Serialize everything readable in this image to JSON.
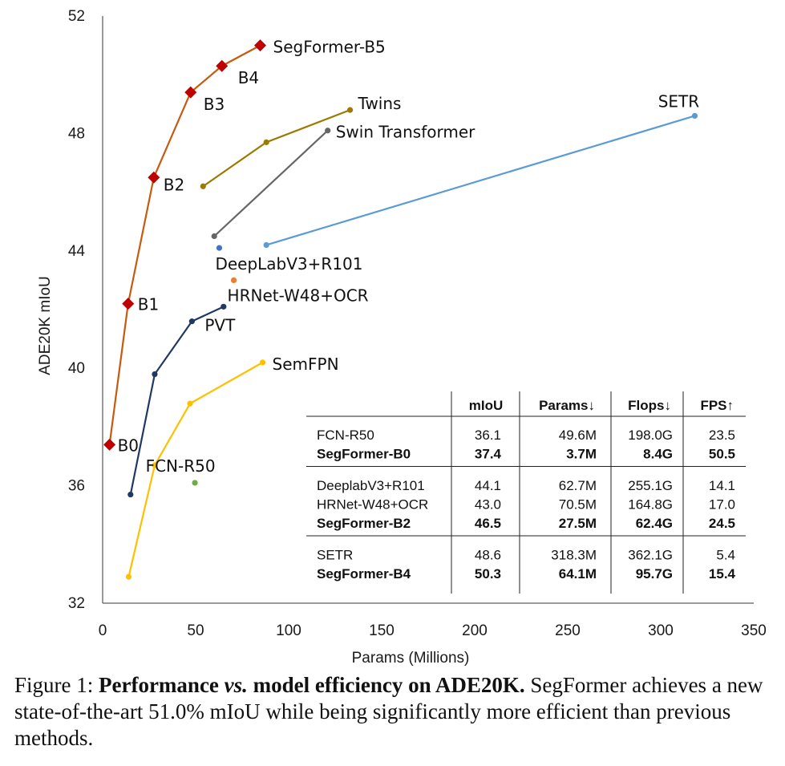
{
  "chart_data": {
    "type": "line",
    "xlabel": "Params (Millions)",
    "ylabel": "ADE20K mIoU",
    "xlim": [
      0,
      350
    ],
    "ylim": [
      32,
      52
    ],
    "xticks": [
      0,
      50,
      100,
      150,
      200,
      250,
      300,
      350
    ],
    "yticks": [
      32,
      36,
      40,
      44,
      48,
      52
    ],
    "grid": false,
    "legend": "none",
    "series": [
      {
        "name": "SegFormer",
        "color": "#C55A11",
        "marker": "diamond",
        "marker_color": "#C00000",
        "x": [
          3.7,
          13.7,
          27.5,
          47.3,
          64.1,
          84.7
        ],
        "y": [
          37.4,
          42.2,
          46.5,
          49.4,
          50.3,
          51.0
        ],
        "point_labels": [
          "B0",
          "B1",
          "B2",
          "B3",
          "B4",
          "SegFormer-B5"
        ]
      },
      {
        "name": "Twins",
        "color": "#9C7A00",
        "marker": "circle",
        "x": [
          54,
          88,
          133
        ],
        "y": [
          46.2,
          47.7,
          48.8
        ],
        "point_labels": [
          "",
          "",
          "Twins"
        ]
      },
      {
        "name": "Swin Transformer",
        "color": "#666666",
        "marker": "circle",
        "x": [
          60,
          121
        ],
        "y": [
          44.5,
          48.1
        ],
        "point_labels": [
          "",
          "Swin Transformer"
        ]
      },
      {
        "name": "SETR",
        "color": "#5B9BD5",
        "marker": "circle",
        "x": [
          88,
          318.3
        ],
        "y": [
          44.2,
          48.6
        ],
        "point_labels": [
          "",
          "SETR"
        ]
      },
      {
        "name": "DeepLabV3+R101",
        "color": "#4472C4",
        "marker": "circle",
        "x": [
          62.7
        ],
        "y": [
          44.1
        ],
        "point_labels": [
          "DeepLabV3+R101"
        ]
      },
      {
        "name": "HRNet-W48+OCR",
        "color": "#ED7D31",
        "marker": "circle",
        "x": [
          70.5
        ],
        "y": [
          43.0
        ],
        "point_labels": [
          "HRNet-W48+OCR"
        ]
      },
      {
        "name": "PVT",
        "color": "#203864",
        "marker": "circle",
        "x": [
          15,
          28,
          48,
          65
        ],
        "y": [
          35.7,
          39.8,
          41.6,
          42.1
        ],
        "point_labels": [
          "",
          "",
          "PVT",
          ""
        ]
      },
      {
        "name": "SemFPN",
        "color": "#FFC000",
        "marker": "circle",
        "x": [
          14,
          28,
          47,
          86
        ],
        "y": [
          32.9,
          36.7,
          38.8,
          40.2
        ],
        "point_labels": [
          "",
          "",
          "",
          "SemFPN"
        ]
      },
      {
        "name": "FCN-R50",
        "color": "#70AD47",
        "marker": "circle",
        "x": [
          49.6
        ],
        "y": [
          36.1
        ],
        "point_labels": [
          "FCN-R50"
        ]
      }
    ],
    "table": {
      "headers": [
        "",
        "mIoU",
        "Params↓",
        "Flops↓",
        "FPS↑"
      ],
      "groups": [
        [
          {
            "name": "FCN-R50",
            "miou": "36.1",
            "params": "49.6M",
            "flops": "198.0G",
            "fps": "23.5",
            "bold": false
          },
          {
            "name": "SegFormer-B0",
            "miou": "37.4",
            "params": "3.7M",
            "flops": "8.4G",
            "fps": "50.5",
            "bold": true
          }
        ],
        [
          {
            "name": "DeeplabV3+R101",
            "miou": "44.1",
            "params": "62.7M",
            "flops": "255.1G",
            "fps": "14.1",
            "bold": false
          },
          {
            "name": "HRNet-W48+OCR",
            "miou": "43.0",
            "params": "70.5M",
            "flops": "164.8G",
            "fps": "17.0",
            "bold": false
          },
          {
            "name": "SegFormer-B2",
            "miou": "46.5",
            "params": "27.5M",
            "flops": "62.4G",
            "fps": "24.5",
            "bold": true
          }
        ],
        [
          {
            "name": "SETR",
            "miou": "48.6",
            "params": "318.3M",
            "flops": "362.1G",
            "fps": "5.4",
            "bold": false
          },
          {
            "name": "SegFormer-B4",
            "miou": "50.3",
            "params": "64.1M",
            "flops": "95.7G",
            "fps": "15.4",
            "bold": true
          }
        ]
      ]
    }
  },
  "caption": {
    "label": "Figure 1: ",
    "bold_part1": "Performance ",
    "bold_italic": "vs.",
    "bold_part2": " model efficiency on ADE20K.",
    "body": " SegFormer achieves a new state-of-the-art 51.0% mIoU while being significantly more efficient than previous methods."
  }
}
